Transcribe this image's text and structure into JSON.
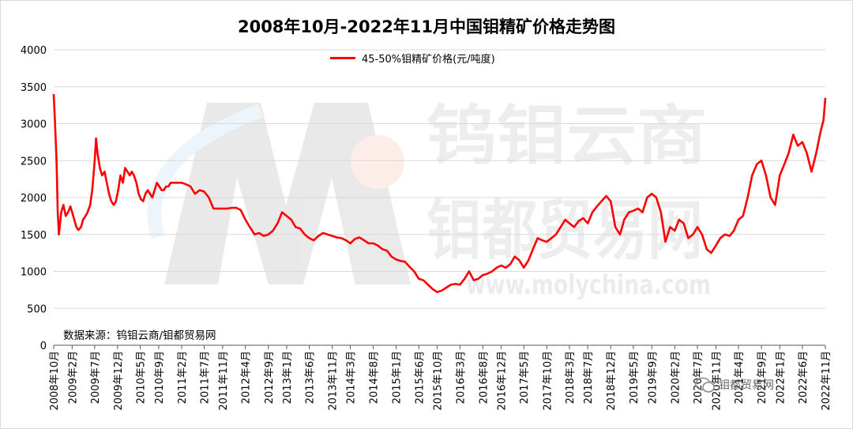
{
  "chart_data": {
    "type": "line",
    "title": "2008年10月-2022年11月中国钼精矿价格走势图",
    "ylim": [
      0,
      4000
    ],
    "yticks": [
      0,
      500,
      1000,
      1500,
      2000,
      2500,
      3000,
      3500,
      4000
    ],
    "xlim": [
      "2008-10",
      "2022-11"
    ],
    "xticks": [
      "2008年10月",
      "2009年2月",
      "2009年7月",
      "2009年12月",
      "2010年5月",
      "2010年9月",
      "2011年2月",
      "2011年7月",
      "2011年11月",
      "2012年4月",
      "2012年9月",
      "2013年1月",
      "2013年6月",
      "2013年11月",
      "2014年3月",
      "2014年8月",
      "2015年1月",
      "2015年6月",
      "2015年10月",
      "2016年3月",
      "2016年8月",
      "2016年12月",
      "2017年5月",
      "2017年10月",
      "2018年3月",
      "2018年7月",
      "2018年12月",
      "2019年5月",
      "2019年9月",
      "2020年2月",
      "2020年7月",
      "2020年11月",
      "2021年4月",
      "2021年9月",
      "2022年1月",
      "2022年6月",
      "2022年11月"
    ],
    "legend_position": "top-center",
    "grid": "horizontal",
    "series": [
      {
        "name": "45-50%钼精矿价格(元/吨度)",
        "color": "#ff0000",
        "points": [
          [
            "2008-10-01",
            3400
          ],
          [
            "2008-10-10",
            3000
          ],
          [
            "2008-10-20",
            2500
          ],
          [
            "2008-10-28",
            1800
          ],
          [
            "2008-11-05",
            1500
          ],
          [
            "2008-11-20",
            1800
          ],
          [
            "2008-12-05",
            1900
          ],
          [
            "2008-12-20",
            1750
          ],
          [
            "2009-01-05",
            1800
          ],
          [
            "2009-01-20",
            1880
          ],
          [
            "2009-02-01",
            1800
          ],
          [
            "2009-02-15",
            1700
          ],
          [
            "2009-03-01",
            1600
          ],
          [
            "2009-03-15",
            1560
          ],
          [
            "2009-04-01",
            1600
          ],
          [
            "2009-04-15",
            1700
          ],
          [
            "2009-05-01",
            1750
          ],
          [
            "2009-05-15",
            1800
          ],
          [
            "2009-06-01",
            1900
          ],
          [
            "2009-06-15",
            2100
          ],
          [
            "2009-07-01",
            2500
          ],
          [
            "2009-07-10",
            2800
          ],
          [
            "2009-07-20",
            2600
          ],
          [
            "2009-08-05",
            2400
          ],
          [
            "2009-08-20",
            2300
          ],
          [
            "2009-09-05",
            2350
          ],
          [
            "2009-09-20",
            2200
          ],
          [
            "2009-10-05",
            2050
          ],
          [
            "2009-10-20",
            1950
          ],
          [
            "2009-11-05",
            1900
          ],
          [
            "2009-11-20",
            1950
          ],
          [
            "2009-12-05",
            2100
          ],
          [
            "2009-12-20",
            2300
          ],
          [
            "2010-01-05",
            2200
          ],
          [
            "2010-01-20",
            2400
          ],
          [
            "2010-02-05",
            2350
          ],
          [
            "2010-02-20",
            2300
          ],
          [
            "2010-03-05",
            2350
          ],
          [
            "2010-03-20",
            2300
          ],
          [
            "2010-04-05",
            2200
          ],
          [
            "2010-04-20",
            2050
          ],
          [
            "2010-05-05",
            1980
          ],
          [
            "2010-05-20",
            1950
          ],
          [
            "2010-06-05",
            2050
          ],
          [
            "2010-06-20",
            2100
          ],
          [
            "2010-07-05",
            2050
          ],
          [
            "2010-07-20",
            2000
          ],
          [
            "2010-08-05",
            2100
          ],
          [
            "2010-08-20",
            2200
          ],
          [
            "2010-09-05",
            2150
          ],
          [
            "2010-09-20",
            2100
          ],
          [
            "2010-10-05",
            2100
          ],
          [
            "2010-10-20",
            2150
          ],
          [
            "2010-11-05",
            2150
          ],
          [
            "2010-11-20",
            2200
          ],
          [
            "2011-01-01",
            2200
          ],
          [
            "2011-02-01",
            2200
          ],
          [
            "2011-03-01",
            2180
          ],
          [
            "2011-04-01",
            2150
          ],
          [
            "2011-05-01",
            2050
          ],
          [
            "2011-06-01",
            2100
          ],
          [
            "2011-07-01",
            2080
          ],
          [
            "2011-08-01",
            2000
          ],
          [
            "2011-09-01",
            1850
          ],
          [
            "2011-10-01",
            1850
          ],
          [
            "2011-11-01",
            1850
          ],
          [
            "2011-12-01",
            1850
          ],
          [
            "2012-01-01",
            1860
          ],
          [
            "2012-02-01",
            1860
          ],
          [
            "2012-03-01",
            1830
          ],
          [
            "2012-04-01",
            1700
          ],
          [
            "2012-05-01",
            1600
          ],
          [
            "2012-06-01",
            1500
          ],
          [
            "2012-07-01",
            1520
          ],
          [
            "2012-08-01",
            1480
          ],
          [
            "2012-09-01",
            1500
          ],
          [
            "2012-10-01",
            1550
          ],
          [
            "2012-11-01",
            1650
          ],
          [
            "2012-12-01",
            1800
          ],
          [
            "2013-01-01",
            1750
          ],
          [
            "2013-02-01",
            1700
          ],
          [
            "2013-03-01",
            1600
          ],
          [
            "2013-04-01",
            1580
          ],
          [
            "2013-05-01",
            1500
          ],
          [
            "2013-06-01",
            1450
          ],
          [
            "2013-07-01",
            1420
          ],
          [
            "2013-08-01",
            1480
          ],
          [
            "2013-09-01",
            1520
          ],
          [
            "2013-10-01",
            1500
          ],
          [
            "2013-11-01",
            1480
          ],
          [
            "2013-12-01",
            1460
          ],
          [
            "2014-01-01",
            1450
          ],
          [
            "2014-02-01",
            1420
          ],
          [
            "2014-03-01",
            1380
          ],
          [
            "2014-04-01",
            1440
          ],
          [
            "2014-05-01",
            1460
          ],
          [
            "2014-06-01",
            1420
          ],
          [
            "2014-07-01",
            1380
          ],
          [
            "2014-08-01",
            1380
          ],
          [
            "2014-09-01",
            1350
          ],
          [
            "2014-10-01",
            1300
          ],
          [
            "2014-11-01",
            1280
          ],
          [
            "2014-12-01",
            1200
          ],
          [
            "2015-01-01",
            1160
          ],
          [
            "2015-02-01",
            1140
          ],
          [
            "2015-03-01",
            1130
          ],
          [
            "2015-04-01",
            1060
          ],
          [
            "2015-05-01",
            1000
          ],
          [
            "2015-06-01",
            900
          ],
          [
            "2015-07-01",
            880
          ],
          [
            "2015-08-01",
            820
          ],
          [
            "2015-09-01",
            760
          ],
          [
            "2015-10-01",
            720
          ],
          [
            "2015-11-01",
            740
          ],
          [
            "2015-12-01",
            780
          ],
          [
            "2016-01-01",
            820
          ],
          [
            "2016-02-01",
            830
          ],
          [
            "2016-03-01",
            820
          ],
          [
            "2016-04-01",
            900
          ],
          [
            "2016-05-01",
            1000
          ],
          [
            "2016-06-01",
            880
          ],
          [
            "2016-07-01",
            900
          ],
          [
            "2016-08-01",
            950
          ],
          [
            "2016-09-01",
            970
          ],
          [
            "2016-10-01",
            1000
          ],
          [
            "2016-11-01",
            1050
          ],
          [
            "2016-12-01",
            1080
          ],
          [
            "2017-01-01",
            1050
          ],
          [
            "2017-02-01",
            1100
          ],
          [
            "2017-03-01",
            1200
          ],
          [
            "2017-04-01",
            1150
          ],
          [
            "2017-05-01",
            1050
          ],
          [
            "2017-06-01",
            1150
          ],
          [
            "2017-07-01",
            1300
          ],
          [
            "2017-08-01",
            1450
          ],
          [
            "2017-09-01",
            1420
          ],
          [
            "2017-10-01",
            1400
          ],
          [
            "2017-11-01",
            1450
          ],
          [
            "2017-12-01",
            1500
          ],
          [
            "2018-01-01",
            1600
          ],
          [
            "2018-02-01",
            1700
          ],
          [
            "2018-03-01",
            1650
          ],
          [
            "2018-04-01",
            1600
          ],
          [
            "2018-05-01",
            1680
          ],
          [
            "2018-06-01",
            1720
          ],
          [
            "2018-07-01",
            1650
          ],
          [
            "2018-08-01",
            1800
          ],
          [
            "2018-09-01",
            1880
          ],
          [
            "2018-10-01",
            1950
          ],
          [
            "2018-11-01",
            2020
          ],
          [
            "2018-12-01",
            1950
          ],
          [
            "2019-01-01",
            1600
          ],
          [
            "2019-02-01",
            1500
          ],
          [
            "2019-03-01",
            1700
          ],
          [
            "2019-04-01",
            1800
          ],
          [
            "2019-05-01",
            1820
          ],
          [
            "2019-06-01",
            1850
          ],
          [
            "2019-07-01",
            1800
          ],
          [
            "2019-08-01",
            2000
          ],
          [
            "2019-09-01",
            2050
          ],
          [
            "2019-10-01",
            2000
          ],
          [
            "2019-11-01",
            1800
          ],
          [
            "2019-12-01",
            1400
          ],
          [
            "2020-01-01",
            1600
          ],
          [
            "2020-02-01",
            1550
          ],
          [
            "2020-03-01",
            1700
          ],
          [
            "2020-04-01",
            1650
          ],
          [
            "2020-05-01",
            1450
          ],
          [
            "2020-06-01",
            1500
          ],
          [
            "2020-07-01",
            1600
          ],
          [
            "2020-08-01",
            1500
          ],
          [
            "2020-09-01",
            1300
          ],
          [
            "2020-10-01",
            1250
          ],
          [
            "2020-11-01",
            1350
          ],
          [
            "2020-12-01",
            1450
          ],
          [
            "2021-01-01",
            1500
          ],
          [
            "2021-02-01",
            1480
          ],
          [
            "2021-03-01",
            1550
          ],
          [
            "2021-04-01",
            1700
          ],
          [
            "2021-05-01",
            1750
          ],
          [
            "2021-06-01",
            2000
          ],
          [
            "2021-07-01",
            2300
          ],
          [
            "2021-08-01",
            2450
          ],
          [
            "2021-09-01",
            2500
          ],
          [
            "2021-10-01",
            2300
          ],
          [
            "2021-11-01",
            2000
          ],
          [
            "2021-12-01",
            1900
          ],
          [
            "2022-01-01",
            2300
          ],
          [
            "2022-02-01",
            2450
          ],
          [
            "2022-03-01",
            2600
          ],
          [
            "2022-04-01",
            2850
          ],
          [
            "2022-05-01",
            2700
          ],
          [
            "2022-06-01",
            2750
          ],
          [
            "2022-07-01",
            2600
          ],
          [
            "2022-08-01",
            2350
          ],
          [
            "2022-09-01",
            2600
          ],
          [
            "2022-10-01",
            2900
          ],
          [
            "2022-10-20",
            3050
          ],
          [
            "2022-11-01",
            3350
          ]
        ]
      }
    ]
  },
  "legend_label": "45-50%钼精矿价格(元/吨度)",
  "source_note": "数据来源：钨钼云商/钼都贸易网",
  "watermark": {
    "line1": "钨钼云商",
    "line2": "钼都贸易网",
    "url": "www.molychina.com"
  },
  "wechat_label": "钼都贸易网"
}
